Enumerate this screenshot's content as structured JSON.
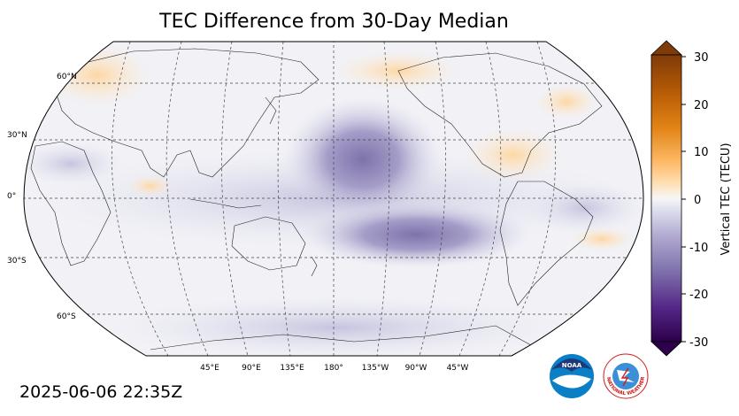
{
  "title": "TEC Difference from 30-Day Median",
  "timestamp": "2025-06-06 22:35Z",
  "map": {
    "projection": "Robinson",
    "central_longitude": "180",
    "lat_labels": [
      "60°N",
      "30°N",
      "0°",
      "30°S",
      "60°S"
    ],
    "lon_labels": [
      "45°E",
      "90°E",
      "135°E",
      "180°",
      "135°W",
      "90°W",
      "45°W"
    ],
    "gridlines": true
  },
  "colorbar": {
    "label": "Vertical TEC (TECU)",
    "ticks": [
      "30",
      "20",
      "10",
      "0",
      "-10",
      "-20",
      "-30"
    ],
    "range": [
      -30,
      30
    ],
    "extend": "both",
    "colors_high": [
      "#7f3b08",
      "#b35806",
      "#e08214",
      "#fdb863",
      "#fee0b6"
    ],
    "color_mid": "#f7f7f7",
    "colors_low": [
      "#d8daeb",
      "#b2abd2",
      "#8073ac",
      "#542788",
      "#2d004b"
    ]
  },
  "logos": {
    "noaa": "NOAA",
    "nws": "NATIONAL WEATHER SERVICE"
  }
}
